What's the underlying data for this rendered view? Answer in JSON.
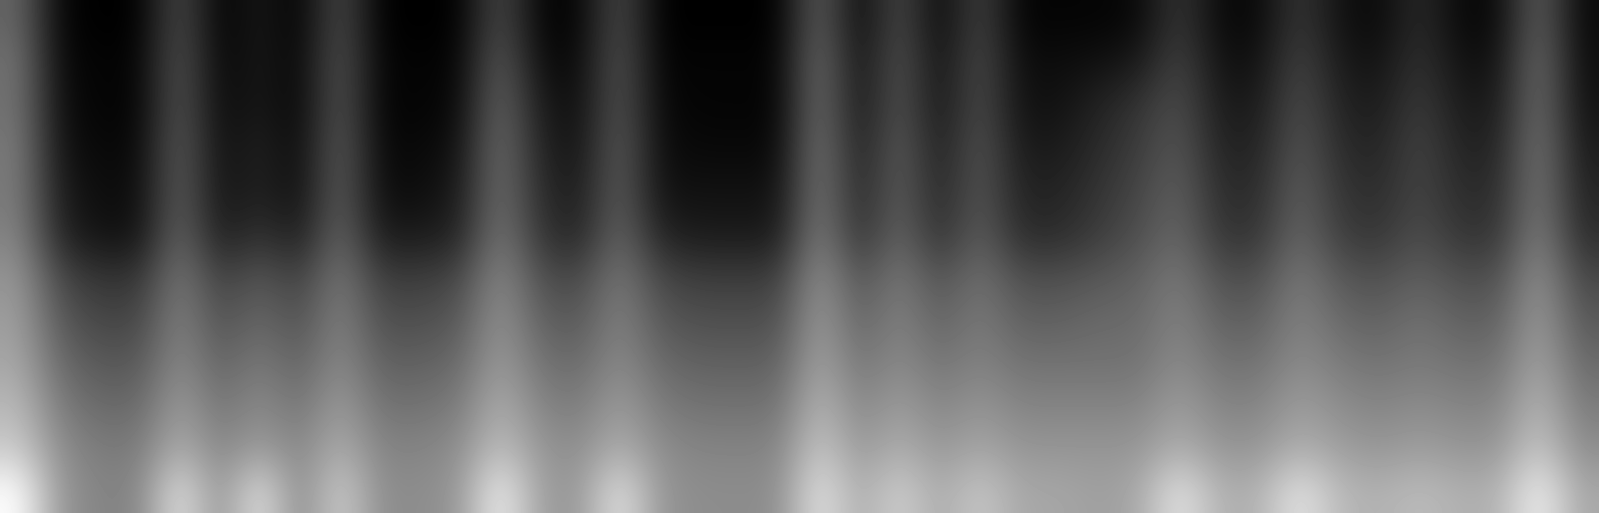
{
  "chart_data": {
    "type": "heatmap",
    "color": "gray",
    "tick_labels": false,
    "cells": [
      [
        25,
        3,
        2,
        2,
        20,
        2,
        8,
        2,
        20,
        2,
        2,
        2,
        20,
        3,
        3,
        20,
        2,
        2,
        2,
        2,
        25,
        3,
        20,
        3,
        18,
        3,
        3,
        3,
        4,
        15,
        4,
        4,
        15,
        6,
        4,
        12,
        4,
        4,
        25,
        4
      ],
      [
        28,
        4,
        3,
        3,
        22,
        3,
        8,
        3,
        22,
        3,
        3,
        3,
        24,
        5,
        4,
        22,
        3,
        3,
        3,
        3,
        28,
        5,
        22,
        5,
        20,
        5,
        5,
        6,
        8,
        18,
        6,
        6,
        18,
        8,
        6,
        14,
        6,
        6,
        28,
        5
      ],
      [
        28,
        5,
        3,
        3,
        22,
        4,
        8,
        3,
        22,
        3,
        3,
        4,
        26,
        8,
        5,
        22,
        4,
        3,
        3,
        3,
        28,
        6,
        22,
        6,
        20,
        6,
        6,
        10,
        14,
        20,
        8,
        8,
        20,
        10,
        8,
        16,
        8,
        8,
        28,
        6
      ],
      [
        30,
        6,
        4,
        4,
        24,
        5,
        10,
        4,
        24,
        4,
        4,
        6,
        28,
        10,
        6,
        24,
        5,
        4,
        4,
        4,
        30,
        8,
        24,
        8,
        22,
        8,
        8,
        12,
        16,
        22,
        10,
        10,
        22,
        12,
        10,
        18,
        10,
        10,
        30,
        8
      ],
      [
        30,
        8,
        5,
        5,
        24,
        6,
        10,
        5,
        24,
        5,
        5,
        8,
        28,
        12,
        8,
        24,
        6,
        6,
        6,
        6,
        30,
        10,
        24,
        10,
        22,
        10,
        10,
        14,
        18,
        24,
        12,
        12,
        24,
        14,
        12,
        18,
        12,
        12,
        30,
        10
      ],
      [
        32,
        10,
        6,
        6,
        26,
        8,
        14,
        8,
        26,
        8,
        8,
        10,
        30,
        14,
        10,
        26,
        10,
        8,
        8,
        8,
        32,
        12,
        26,
        12,
        24,
        12,
        12,
        16,
        20,
        26,
        14,
        14,
        26,
        16,
        14,
        20,
        14,
        14,
        32,
        12
      ],
      [
        36,
        18,
        14,
        14,
        30,
        16,
        22,
        16,
        30,
        16,
        16,
        18,
        34,
        20,
        18,
        30,
        18,
        16,
        16,
        16,
        36,
        20,
        30,
        20,
        28,
        20,
        20,
        22,
        24,
        30,
        20,
        20,
        30,
        22,
        20,
        24,
        20,
        20,
        36,
        18
      ],
      [
        38,
        22,
        18,
        18,
        32,
        20,
        26,
        20,
        32,
        20,
        20,
        22,
        36,
        24,
        22,
        32,
        22,
        20,
        20,
        20,
        38,
        24,
        32,
        24,
        30,
        24,
        24,
        26,
        26,
        32,
        24,
        24,
        32,
        26,
        24,
        28,
        24,
        24,
        38,
        22
      ],
      [
        40,
        26,
        22,
        22,
        34,
        24,
        30,
        24,
        34,
        24,
        24,
        26,
        38,
        28,
        26,
        34,
        26,
        24,
        24,
        24,
        40,
        28,
        34,
        28,
        32,
        28,
        28,
        28,
        28,
        34,
        28,
        28,
        34,
        30,
        28,
        30,
        28,
        28,
        40,
        26
      ],
      [
        44,
        30,
        26,
        26,
        38,
        28,
        34,
        28,
        38,
        28,
        28,
        30,
        42,
        32,
        30,
        38,
        30,
        28,
        28,
        28,
        44,
        32,
        38,
        32,
        36,
        32,
        32,
        32,
        32,
        38,
        32,
        32,
        38,
        34,
        32,
        34,
        32,
        32,
        44,
        30
      ],
      [
        48,
        34,
        30,
        30,
        42,
        32,
        38,
        32,
        42,
        32,
        32,
        34,
        46,
        36,
        34,
        42,
        34,
        32,
        32,
        32,
        48,
        36,
        42,
        36,
        40,
        36,
        36,
        36,
        36,
        42,
        36,
        36,
        42,
        38,
        36,
        38,
        36,
        36,
        48,
        34
      ],
      [
        60,
        36,
        32,
        32,
        55,
        34,
        55,
        32,
        50,
        34,
        34,
        36,
        58,
        38,
        36,
        55,
        36,
        34,
        34,
        34,
        55,
        40,
        50,
        40,
        48,
        40,
        40,
        38,
        40,
        55,
        42,
        42,
        55,
        44,
        42,
        45,
        42,
        42,
        58,
        40
      ]
    ]
  }
}
